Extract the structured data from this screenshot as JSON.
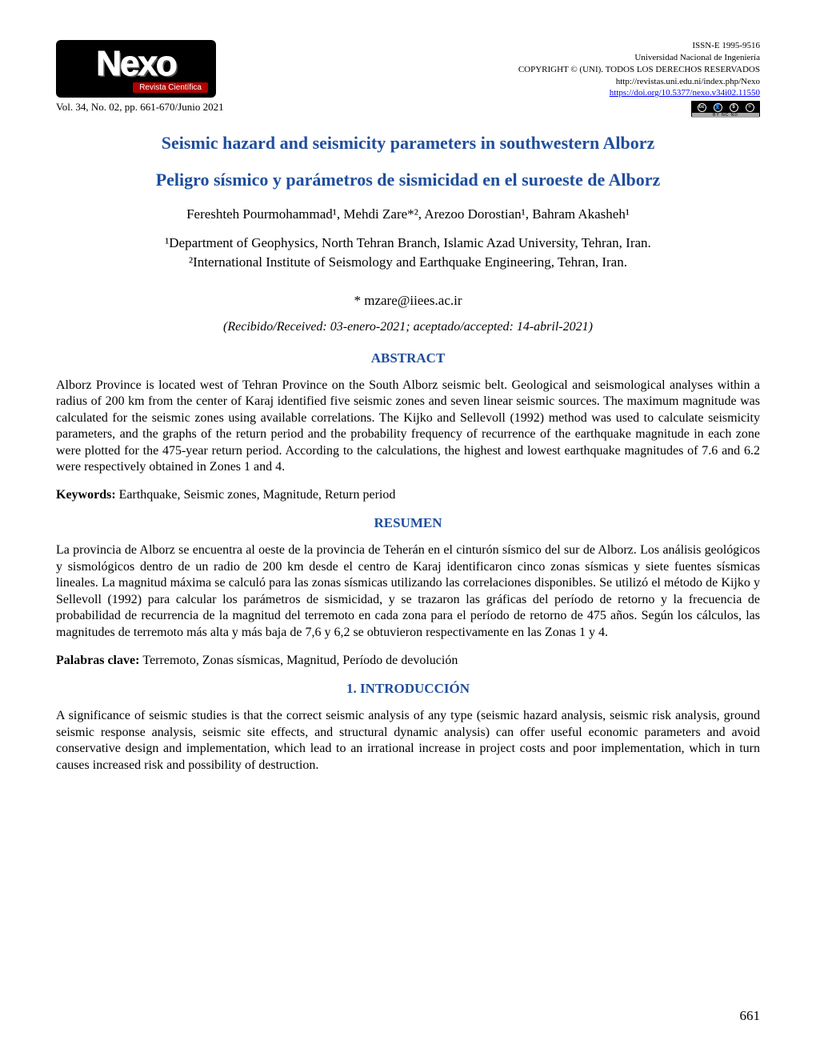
{
  "header": {
    "logo_main": "Nexo",
    "logo_sub": "Revista Científica",
    "vol_line": "Vol. 34, No. 02, pp. 661-670/Junio 2021",
    "issn": "ISSN-E 1995-9516",
    "university": "Universidad Nacional de Ingeniería",
    "copyright": "COPYRIGHT © (UNI). TODOS LOS DERECHOS RESERVADOS",
    "journal_url": "http://revistas.uni.edu.ni/index.php/Nexo",
    "doi_url": "https://doi.org/10.5377/nexo.v34i02.11550",
    "cc_label": "BY    NC    ND"
  },
  "titles": {
    "en": "Seismic hazard and seismicity parameters in southwestern Alborz",
    "es": "Peligro sísmico y parámetros de sismicidad en el suroeste de Alborz"
  },
  "authors_line": "Fereshteh Pourmohammad¹, Mehdi Zare*², Arezoo Dorostian¹, Bahram Akasheh¹",
  "affiliations": {
    "a1": "¹Department of Geophysics, North Tehran  Branch, Islamic Azad University, Tehran, Iran.",
    "a2": "²International Institute of Seismology and Earthquake Engineering, Tehran, Iran."
  },
  "corr_email": "* mzare@iiees.ac.ir",
  "dates_line": "(Recibido/Received: 03-enero-2021; aceptado/accepted: 14-abril-2021)",
  "sections": {
    "abstract_head": "ABSTRACT",
    "abstract_text": "Alborz Province is located west of Tehran Province on the South Alborz seismic belt. Geological and seismological analyses within a radius of 200 km from the center of Karaj identified five seismic zones and seven linear seismic sources. The maximum magnitude was calculated for the seismic zones using available correlations. The Kijko and Sellevoll (1992) method was used to calculate seismicity parameters, and the graphs of the return period and the probability frequency of recurrence of the earthquake magnitude in each zone were plotted for the 475-year return period. According to the calculations, the highest and lowest earthquake magnitudes of 7.6 and 6.2 were respectively obtained in Zones 1 and 4.",
    "keywords_label": "Keywords: ",
    "keywords_text": "Earthquake, Seismic zones, Magnitude, Return period",
    "resumen_head": "RESUMEN",
    "resumen_text": "La provincia de Alborz se encuentra al oeste de la provincia de Teherán en el cinturón sísmico del sur de Alborz. Los análisis geológicos y sismológicos dentro de un radio de 200 km desde el centro de Karaj identificaron cinco zonas sísmicas y siete fuentes sísmicas lineales. La magnitud máxima se calculó para las zonas sísmicas utilizando las correlaciones disponibles. Se utilizó el método de Kijko y Sellevoll (1992) para calcular los parámetros de sismicidad, y se trazaron las gráficas del período de retorno y la frecuencia de probabilidad de recurrencia de la magnitud del terremoto en cada zona para el período de retorno de 475 años. Según los cálculos, las magnitudes de terremoto más alta y más baja de 7,6 y 6,2 se obtuvieron respectivamente en las Zonas 1 y 4.",
    "palabras_label": "Palabras clave: ",
    "palabras_text": "Terremoto, Zonas sísmicas, Magnitud, Período de devolución",
    "intro_head": "1. INTRODUCCIÓN",
    "intro_text": "A significance of seismic studies is that the correct seismic analysis of any type (seismic hazard analysis, seismic risk analysis, ground seismic response analysis, seismic site effects, and structural dynamic analysis) can offer useful economic parameters and avoid conservative design and implementation, which lead to an irrational increase in project costs and poor implementation, which in turn causes increased risk and possibility of destruction."
  },
  "page_number": "661",
  "colors": {
    "title_blue": "#1f4e9c",
    "link_blue": "#0000ee",
    "logo_red": "#b00000"
  }
}
